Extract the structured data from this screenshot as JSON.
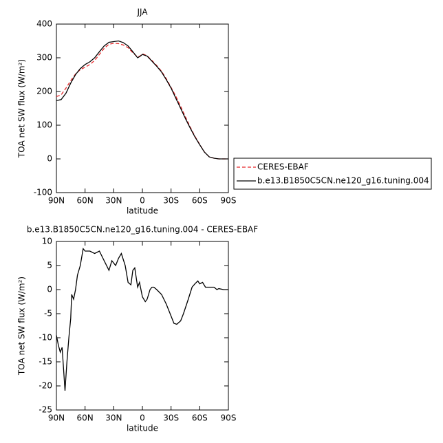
{
  "chart_data": [
    {
      "type": "line",
      "title": "JJA",
      "xlabel": "latitude",
      "ylabel": "TOA net SW flux (W/m²)",
      "x": [
        90,
        85,
        80,
        75,
        70,
        65,
        60,
        55,
        50,
        45,
        40,
        35,
        30,
        25,
        20,
        15,
        10,
        5,
        2,
        0,
        -5,
        -10,
        -15,
        -20,
        -25,
        -30,
        -35,
        -40,
        -45,
        -50,
        -55,
        -60,
        -65,
        -70,
        -75,
        -80,
        -85,
        -90
      ],
      "series": [
        {
          "name": "CERES-EBAF",
          "color": "#e8282a",
          "dash": true,
          "values": [
            185,
            190,
            210,
            232,
            252,
            265,
            272,
            280,
            292,
            310,
            328,
            340,
            343,
            342,
            338,
            330,
            315,
            302,
            306,
            312,
            306,
            292,
            277,
            260,
            238,
            212,
            186,
            156,
            125,
            95,
            67,
            43,
            20,
            6,
            2,
            0,
            0,
            0
          ]
        },
        {
          "name": "b.e13.B1850C5CN.ne120_g16.tuning.004",
          "color": "#000000",
          "dash": false,
          "values": [
            173,
            176,
            195,
            225,
            250,
            268,
            280,
            288,
            300,
            318,
            335,
            346,
            348,
            350,
            345,
            335,
            318,
            300,
            305,
            310,
            305,
            290,
            275,
            258,
            235,
            210,
            180,
            150,
            120,
            92,
            65,
            42,
            20,
            6,
            2,
            0,
            0,
            0
          ]
        }
      ],
      "xlim": [
        90,
        -90
      ],
      "xticks": [
        {
          "value": 90,
          "label": "90N"
        },
        {
          "value": 60,
          "label": "60N"
        },
        {
          "value": 30,
          "label": "30N"
        },
        0,
        {
          "value": -30,
          "label": "30S"
        },
        {
          "value": -60,
          "label": "60S"
        },
        {
          "value": -90,
          "label": "90S"
        }
      ],
      "ylim": [
        -100,
        400
      ],
      "yticks": [
        -100,
        0,
        100,
        200,
        300,
        400
      ]
    },
    {
      "type": "line",
      "title": "b.e13.B1850C5CN.ne120_g16.tuning.004 - CERES-EBAF",
      "xlabel": "latitude",
      "ylabel": "TOA net SW flux (W/m²)",
      "x": [
        90,
        88,
        86,
        84,
        81,
        79,
        77,
        75,
        74,
        72,
        70,
        68,
        65,
        62,
        60,
        55,
        50,
        45,
        40,
        35,
        32,
        28,
        25,
        22,
        18,
        15,
        12,
        10,
        8,
        5,
        3,
        0,
        -3,
        -5,
        -8,
        -10,
        -12,
        -15,
        -20,
        -25,
        -30,
        -33,
        -36,
        -40,
        -43,
        -48,
        -52,
        -55,
        -58,
        -60,
        -63,
        -66,
        -70,
        -75,
        -78,
        -80,
        -85,
        -90
      ],
      "values": [
        -9.5,
        -11.5,
        -13,
        -12,
        -21,
        -15,
        -10,
        -6,
        -1,
        -2,
        0,
        3,
        5,
        8.5,
        8,
        8,
        7.5,
        8,
        6,
        4,
        6,
        5,
        6.5,
        7.5,
        5,
        1.5,
        1,
        4,
        4.5,
        0.5,
        1.5,
        -1.5,
        -2.5,
        -2,
        0,
        0.5,
        0.5,
        0,
        -1,
        -3,
        -5.5,
        -7,
        -7.2,
        -6.5,
        -5,
        -2,
        0.5,
        1.2,
        1.8,
        1.2,
        1.5,
        0.5,
        0.5,
        0.5,
        0,
        0.2,
        0,
        0
      ],
      "color": "#000000",
      "xlim": [
        90,
        -90
      ],
      "xticks": [
        {
          "value": 90,
          "label": "90N"
        },
        {
          "value": 60,
          "label": "60N"
        },
        {
          "value": 30,
          "label": "30N"
        },
        0,
        {
          "value": -30,
          "label": "30S"
        },
        {
          "value": -60,
          "label": "60S"
        },
        {
          "value": -90,
          "label": "90S"
        }
      ],
      "ylim": [
        -25,
        10
      ],
      "yticks": [
        -25,
        -20,
        -15,
        -10,
        -5,
        0,
        5,
        10
      ]
    }
  ]
}
